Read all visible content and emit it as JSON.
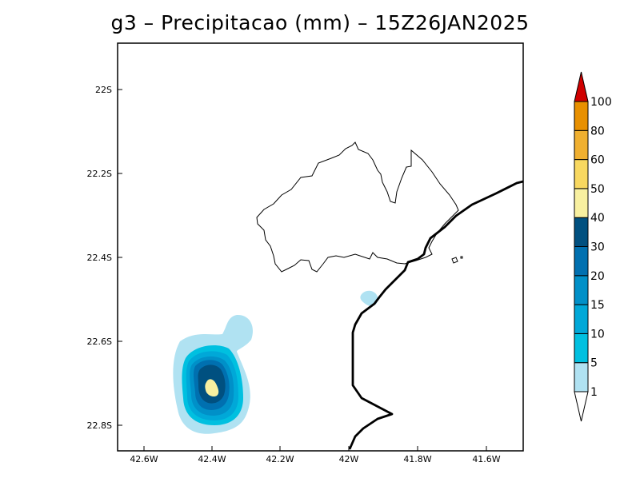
{
  "title": "g3 – Precipitacao (mm) – 15Z26JAN2025",
  "map": {
    "x_ticks": [
      "42.6W",
      "42.4W",
      "42.2W",
      "42W",
      "41.8W",
      "41.6W"
    ],
    "y_ticks": [
      "22S",
      "22.2S",
      "22.4S",
      "22.6S",
      "22.8S"
    ]
  },
  "colorbar": {
    "labels": [
      "1",
      "5",
      "10",
      "15",
      "20",
      "30",
      "40",
      "50",
      "60",
      "80",
      "100"
    ],
    "colors": [
      "#b0e2f2",
      "#00c0e0",
      "#00a8d8",
      "#0090c8",
      "#0070b0",
      "#005080",
      "#f8f0a0",
      "#f8d860",
      "#f0b030",
      "#e89000",
      "#d00000"
    ]
  }
}
